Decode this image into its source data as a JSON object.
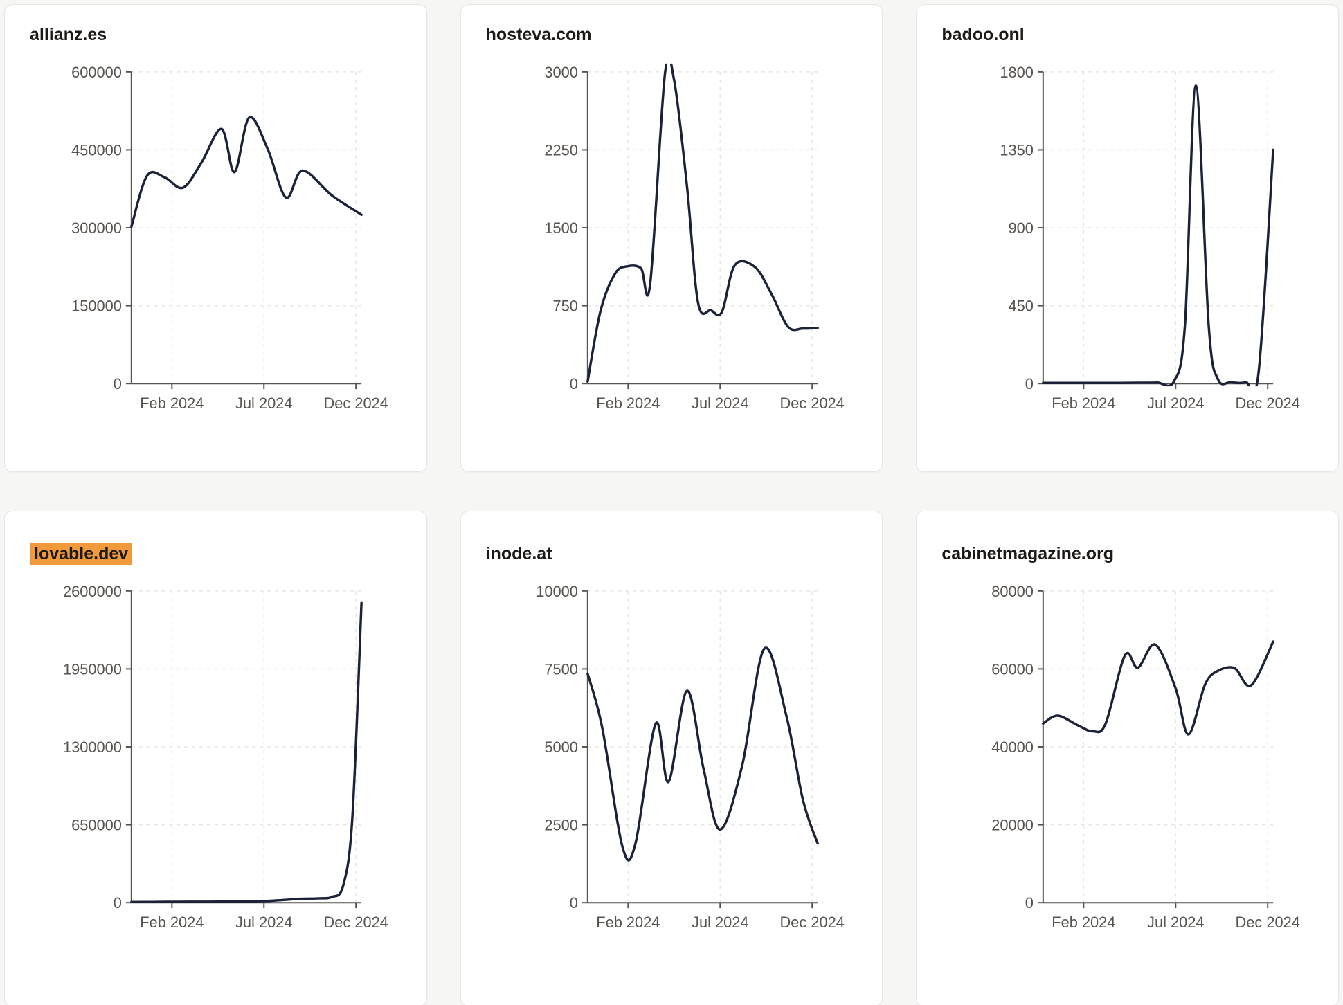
{
  "style": {
    "page_background": "#f6f6f5",
    "card_background": "#ffffff",
    "card_border": "#e8e6e3",
    "line_color": "#1b2138",
    "axis_color": "#57534e",
    "grid_color": "#e7e5e3",
    "tick_label_color": "#57534e",
    "title_color": "#1c1917",
    "highlight_color": "#f09a3b"
  },
  "chart_data": [
    {
      "type": "line",
      "title": "allianz.es",
      "highlighted": false,
      "x_note": "x values are months since Jan 2024",
      "x_range_months": [
        -1.2,
        11.3
      ],
      "x_ticks_months": [
        1,
        6,
        11
      ],
      "x_tick_labels": [
        "Feb 2024",
        "Jul 2024",
        "Dec 2024"
      ],
      "y_ticks": [
        0,
        150000,
        300000,
        450000,
        600000
      ],
      "points": [
        [
          -1.2,
          302000
        ],
        [
          -0.35,
          400000
        ],
        [
          0.6,
          397000
        ],
        [
          1.6,
          377000
        ],
        [
          2.6,
          425000
        ],
        [
          3.7,
          490000
        ],
        [
          4.4,
          407000
        ],
        [
          5.2,
          512000
        ],
        [
          6.2,
          452000
        ],
        [
          7.2,
          358000
        ],
        [
          8.1,
          410000
        ],
        [
          9.7,
          362000
        ],
        [
          11.3,
          325000
        ]
      ]
    },
    {
      "type": "line",
      "title": "hosteva.com",
      "highlighted": false,
      "x_note": "x values are months since Jan 2024",
      "x_range_months": [
        -1.2,
        11.3
      ],
      "x_ticks_months": [
        1,
        6,
        11
      ],
      "x_tick_labels": [
        "Feb 2024",
        "Jul 2024",
        "Dec 2024"
      ],
      "y_ticks": [
        0,
        750,
        1500,
        2250,
        3000
      ],
      "points": [
        [
          -1.2,
          20
        ],
        [
          -0.5,
          700
        ],
        [
          0.3,
          1060
        ],
        [
          1.0,
          1130
        ],
        [
          1.7,
          1110
        ],
        [
          2.2,
          960
        ],
        [
          3.0,
          2980
        ],
        [
          3.5,
          2920
        ],
        [
          4.2,
          1900
        ],
        [
          4.8,
          780
        ],
        [
          5.5,
          705
        ],
        [
          6.1,
          690
        ],
        [
          6.8,
          1140
        ],
        [
          7.9,
          1120
        ],
        [
          8.8,
          860
        ],
        [
          9.7,
          545
        ],
        [
          10.5,
          530
        ],
        [
          11.3,
          535
        ]
      ]
    },
    {
      "type": "line",
      "title": "badoo.onl",
      "highlighted": false,
      "x_note": "x values are months since Jan 2024",
      "x_range_months": [
        -1.2,
        11.3
      ],
      "x_ticks_months": [
        1,
        6,
        11
      ],
      "x_tick_labels": [
        "Feb 2024",
        "Jul 2024",
        "Dec 2024"
      ],
      "y_ticks": [
        0,
        450,
        900,
        1350,
        1800
      ],
      "points": [
        [
          -1.2,
          4
        ],
        [
          0,
          4
        ],
        [
          1,
          4
        ],
        [
          2,
          4
        ],
        [
          3,
          4
        ],
        [
          4,
          5
        ],
        [
          5,
          6
        ],
        [
          5.9,
          12
        ],
        [
          6.5,
          330
        ],
        [
          7.1,
          1720
        ],
        [
          7.8,
          330
        ],
        [
          8.3,
          25
        ],
        [
          9.0,
          8
        ],
        [
          9.8,
          8
        ],
        [
          10.5,
          60
        ],
        [
          11.3,
          1350
        ]
      ]
    },
    {
      "type": "line",
      "title": "lovable.dev",
      "highlighted": true,
      "x_note": "x values are months since Jan 2024",
      "x_range_months": [
        -1.2,
        11.3
      ],
      "x_ticks_months": [
        1,
        6,
        11
      ],
      "x_tick_labels": [
        "Feb 2024",
        "Jul 2024",
        "Dec 2024"
      ],
      "y_ticks": [
        0,
        650000,
        1300000,
        1950000,
        2600000
      ],
      "points": [
        [
          -1.2,
          5000
        ],
        [
          0,
          6000
        ],
        [
          1,
          7000
        ],
        [
          2,
          8000
        ],
        [
          3,
          8000
        ],
        [
          4,
          9000
        ],
        [
          5,
          10000
        ],
        [
          6,
          13000
        ],
        [
          7,
          22000
        ],
        [
          8,
          32000
        ],
        [
          9,
          36000
        ],
        [
          9.7,
          48000
        ],
        [
          10.3,
          140000
        ],
        [
          10.8,
          700000
        ],
        [
          11.3,
          2500000
        ]
      ]
    },
    {
      "type": "line",
      "title": "inode.at",
      "highlighted": false,
      "x_note": "x values are months since Jan 2024",
      "x_range_months": [
        -1.2,
        11.3
      ],
      "x_ticks_months": [
        1,
        6,
        11
      ],
      "x_tick_labels": [
        "Feb 2024",
        "Jul 2024",
        "Dec 2024"
      ],
      "y_ticks": [
        0,
        2500,
        5000,
        7500,
        10000
      ],
      "points": [
        [
          -1.2,
          7350
        ],
        [
          -0.4,
          5600
        ],
        [
          0.7,
          1780
        ],
        [
          1.4,
          1900
        ],
        [
          2.5,
          5750
        ],
        [
          3.2,
          3880
        ],
        [
          4.2,
          6800
        ],
        [
          5.1,
          4300
        ],
        [
          6.0,
          2350
        ],
        [
          7.2,
          4400
        ],
        [
          8.4,
          8150
        ],
        [
          9.6,
          6000
        ],
        [
          10.5,
          3300
        ],
        [
          11.3,
          1900
        ]
      ]
    },
    {
      "type": "line",
      "title": "cabinetmagazine.org",
      "highlighted": false,
      "x_note": "x values are months since Jan 2024",
      "x_range_months": [
        -1.2,
        11.3
      ],
      "x_ticks_months": [
        1,
        6,
        11
      ],
      "x_tick_labels": [
        "Feb 2024",
        "Jul 2024",
        "Dec 2024"
      ],
      "y_ticks": [
        0,
        20000,
        40000,
        60000,
        80000
      ],
      "points": [
        [
          -1.2,
          46000
        ],
        [
          -0.4,
          48000
        ],
        [
          0.7,
          45500
        ],
        [
          1.5,
          44000
        ],
        [
          2.2,
          46000
        ],
        [
          3.25,
          63500
        ],
        [
          3.95,
          60300
        ],
        [
          4.9,
          66200
        ],
        [
          6.0,
          55000
        ],
        [
          6.7,
          43200
        ],
        [
          7.6,
          56000
        ],
        [
          8.3,
          59500
        ],
        [
          9.2,
          60200
        ],
        [
          10.1,
          55800
        ],
        [
          11.3,
          67000
        ]
      ]
    }
  ]
}
